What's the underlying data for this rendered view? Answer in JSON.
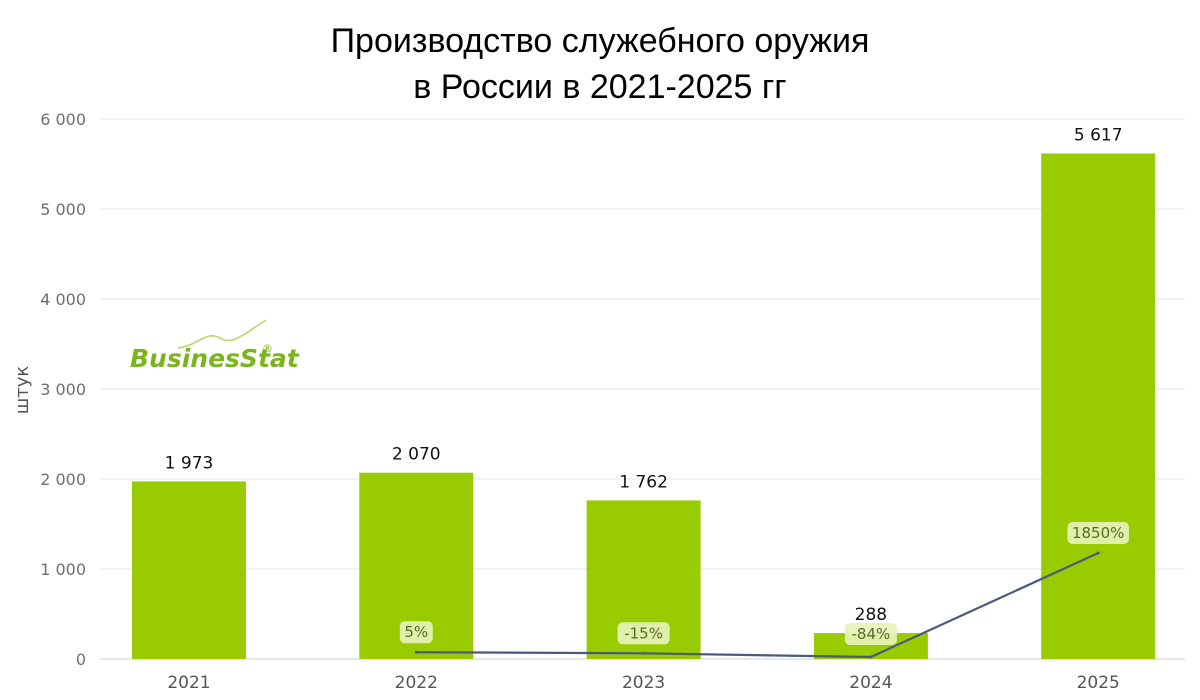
{
  "chart_data": {
    "type": "bar",
    "title_lines": [
      "Производство служебного оружия",
      "в России в 2021-2025 гг"
    ],
    "ylabel": "штук",
    "categories": [
      "2021",
      "2022",
      "2023",
      "2024",
      "2025"
    ],
    "series": [
      {
        "values": [
          1973,
          2070,
          1762,
          288,
          5617
        ],
        "labels": [
          "1 973",
          "2 070",
          "1 762",
          "288",
          "5 617"
        ],
        "color": "#99cc00"
      }
    ],
    "growth": {
      "type": "line",
      "color": "#4a5a7a",
      "categories": [
        "2022",
        "2023",
        "2024",
        "2025"
      ],
      "values": [
        5,
        -15,
        -84,
        1850
      ],
      "labels": [
        "5%",
        "-15%",
        "-84%",
        "1850%"
      ]
    },
    "yticks": [
      0,
      1000,
      2000,
      3000,
      4000,
      5000,
      6000
    ],
    "ytick_labels": [
      "0",
      "1 000",
      "2 000",
      "3 000",
      "4 000",
      "5 000",
      "6 000"
    ],
    "ylim": [
      0,
      6000
    ],
    "grid": true
  },
  "logo": {
    "text": "BusinesStat",
    "mark": "®"
  }
}
